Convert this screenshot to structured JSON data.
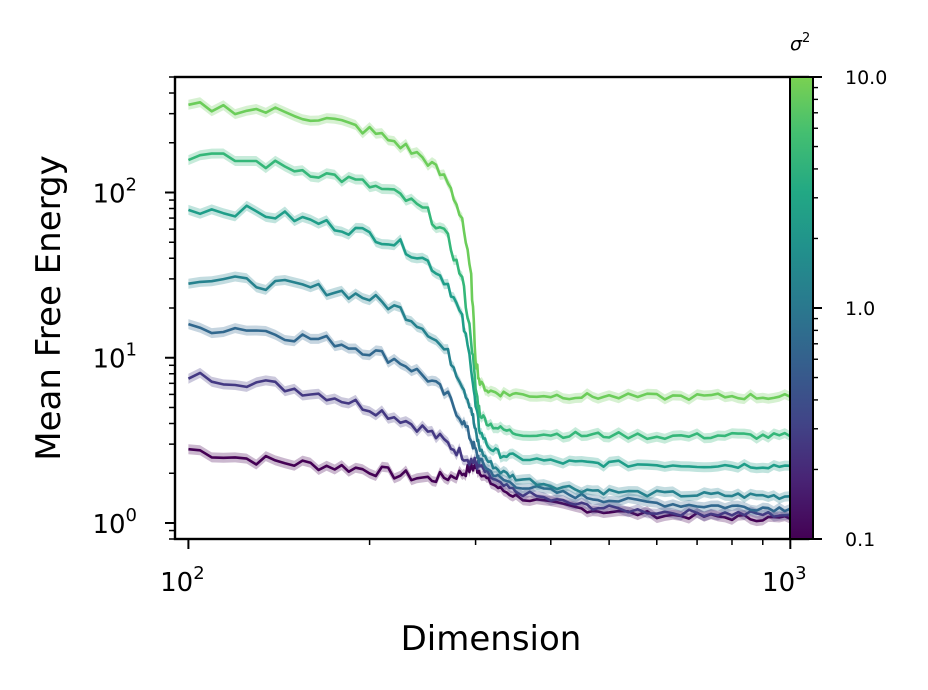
{
  "chart_data": {
    "type": "line",
    "xlabel": "Dimension",
    "ylabel": "Mean Free Energy",
    "xscale": "log",
    "yscale": "log",
    "xlim": [
      95,
      1070
    ],
    "ylim": [
      0.8,
      500
    ],
    "x_ticks": [
      {
        "value": 100,
        "base": "10",
        "exp": "2"
      },
      {
        "value": 1000,
        "base": "10",
        "exp": "3"
      }
    ],
    "y_ticks": [
      {
        "value": 1,
        "base": "10",
        "exp": "0"
      },
      {
        "value": 10,
        "base": "10",
        "exp": "1"
      },
      {
        "value": 100,
        "base": "10",
        "exp": "2"
      }
    ],
    "legend": "none",
    "grid": false,
    "x": [
      100,
      125,
      150,
      175,
      200,
      225,
      250,
      270,
      285,
      295,
      300,
      305,
      315,
      330,
      350,
      400,
      450,
      500,
      600,
      700,
      800,
      900,
      1000
    ],
    "series": [
      {
        "sigma2": 0.1,
        "color": "#440154",
        "values": [
          2.8,
          2.45,
          2.3,
          2.2,
          2.1,
          1.95,
          1.85,
          1.9,
          2.0,
          2.15,
          2.2,
          2.05,
          1.8,
          1.6,
          1.45,
          1.3,
          1.22,
          1.17,
          1.12,
          1.1,
          1.08,
          1.07,
          1.06
        ]
      },
      {
        "sigma2": 0.2,
        "color": "#443983",
        "values": [
          7.8,
          7.2,
          6.5,
          5.8,
          5.0,
          4.3,
          3.6,
          3.0,
          2.6,
          2.4,
          2.3,
          2.2,
          1.95,
          1.7,
          1.55,
          1.38,
          1.28,
          1.22,
          1.17,
          1.15,
          1.14,
          1.13,
          1.12
        ]
      },
      {
        "sigma2": 0.4,
        "color": "#31688e",
        "values": [
          15.0,
          15.2,
          13.5,
          12.5,
          11.0,
          9.5,
          7.5,
          5.8,
          4.2,
          3.2,
          2.7,
          2.4,
          2.1,
          1.85,
          1.7,
          1.55,
          1.45,
          1.38,
          1.32,
          1.28,
          1.26,
          1.24,
          1.22
        ]
      },
      {
        "sigma2": 0.8,
        "color": "#26828e",
        "values": [
          30.0,
          28.5,
          27.0,
          25.5,
          23.0,
          19.5,
          14.5,
          10.5,
          7.0,
          5.0,
          3.5,
          2.8,
          2.35,
          2.05,
          1.88,
          1.7,
          1.6,
          1.55,
          1.5,
          1.48,
          1.47,
          1.46,
          1.45
        ]
      },
      {
        "sigma2": 1.6,
        "color": "#1f9e89",
        "values": [
          80.0,
          77.0,
          70.0,
          63.0,
          56.0,
          48.0,
          38.0,
          28.0,
          17.0,
          9.0,
          5.0,
          3.6,
          2.9,
          2.6,
          2.5,
          2.35,
          2.3,
          2.28,
          2.26,
          2.25,
          2.24,
          2.23,
          2.22
        ]
      },
      {
        "sigma2": 3.2,
        "color": "#35b779",
        "values": [
          168.0,
          155.0,
          140.0,
          125.0,
          110.0,
          95.0,
          75.0,
          52.0,
          30.0,
          13.0,
          6.5,
          4.6,
          4.0,
          3.7,
          3.5,
          3.45,
          3.4,
          3.4,
          3.35,
          3.35,
          3.4,
          3.35,
          3.35
        ]
      },
      {
        "sigma2": 6.4,
        "color": "#6ccd5a",
        "values": [
          330.0,
          320.0,
          300.0,
          270.0,
          235.0,
          195.0,
          155.0,
          115.0,
          70.0,
          30.0,
          10.0,
          7.0,
          6.3,
          6.1,
          6.0,
          5.9,
          5.85,
          5.8,
          5.8,
          5.8,
          5.85,
          5.8,
          5.8
        ]
      }
    ],
    "colorbar": {
      "label": "σ",
      "label_sup": "2",
      "scale": "log",
      "range": [
        0.1,
        10.0
      ],
      "tick_labels": [
        "10.0",
        "1.0",
        "0.1"
      ],
      "tick_values": [
        10.0,
        1.0,
        0.1
      ],
      "colormap": "viridis"
    }
  }
}
